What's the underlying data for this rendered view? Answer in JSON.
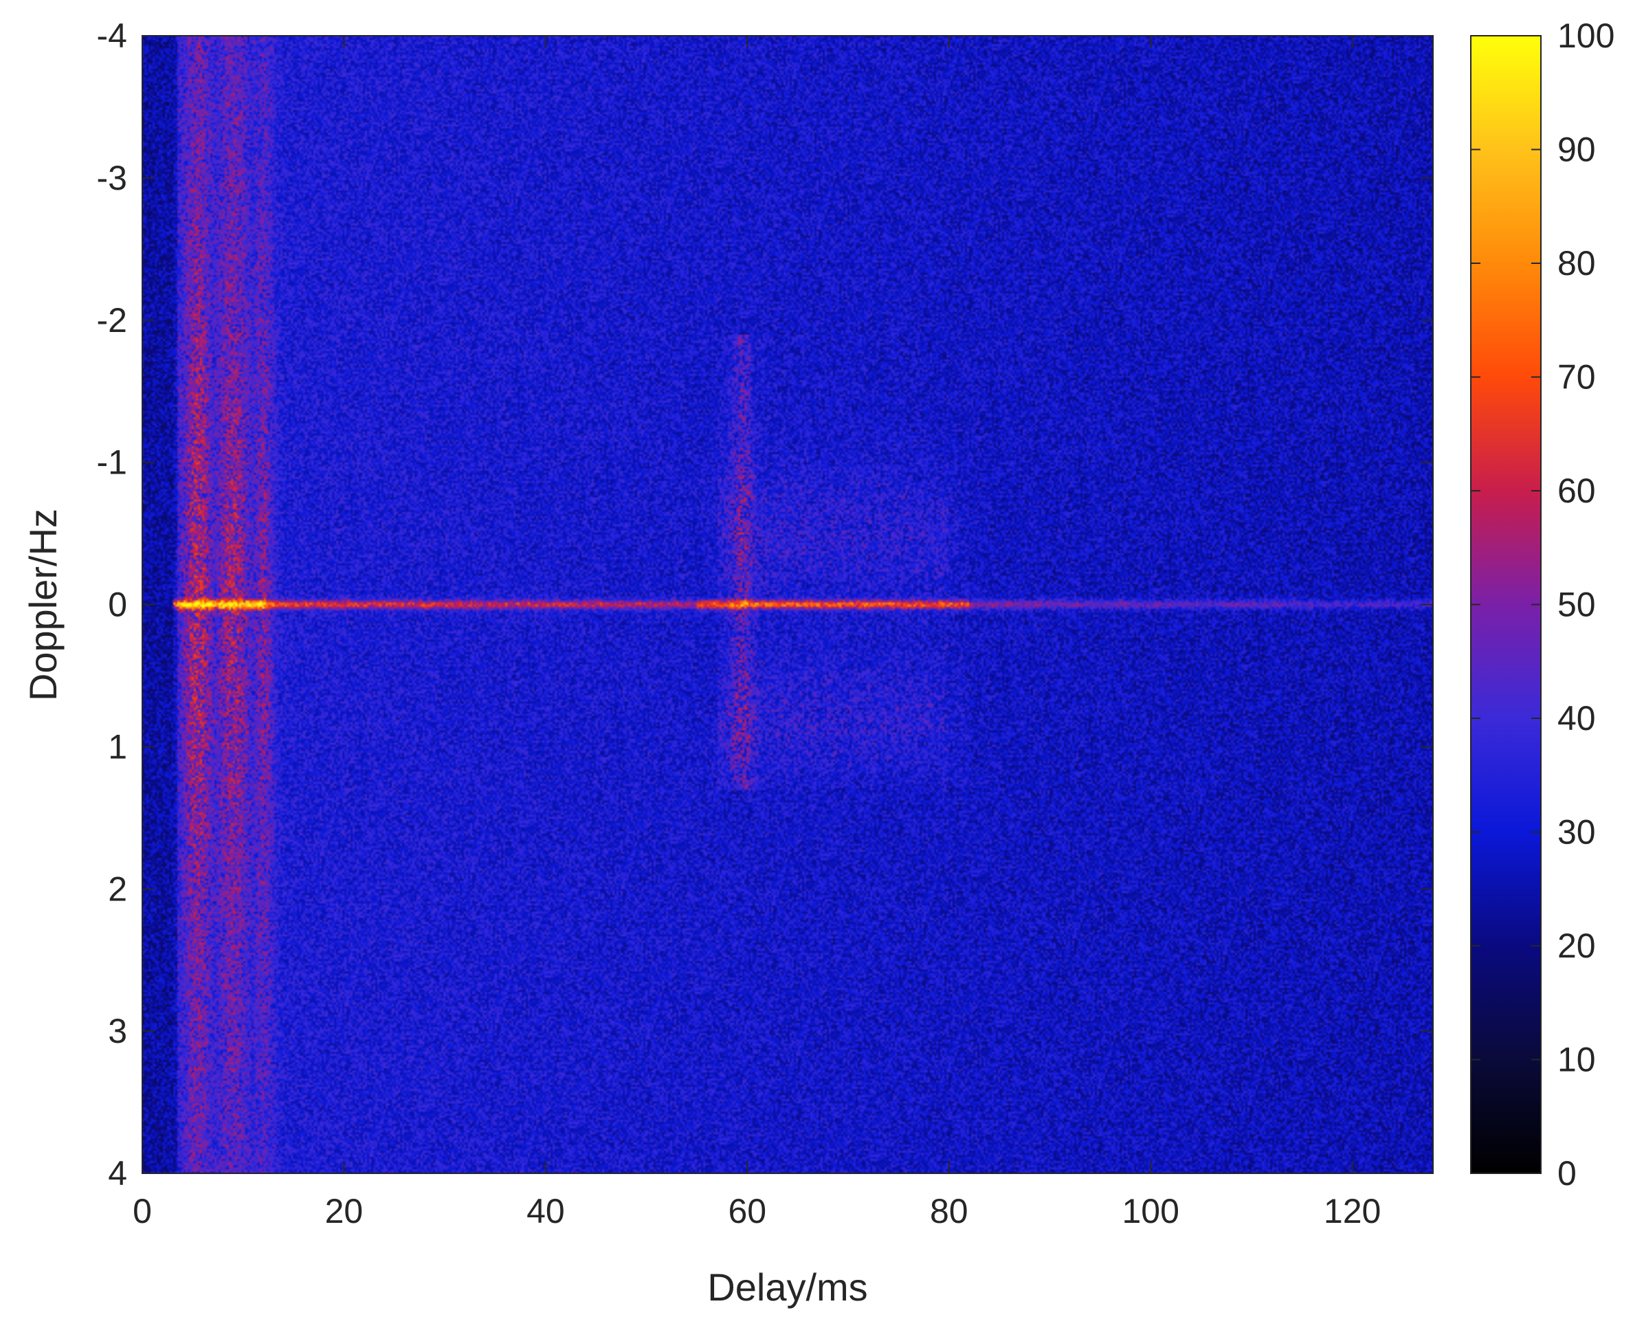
{
  "chart_data": {
    "type": "heatmap",
    "title": "",
    "xlabel": "Delay/ms",
    "ylabel": "Doppler/Hz",
    "xlim": [
      0,
      128
    ],
    "ylim": [
      -4,
      4
    ],
    "y_reversed": true,
    "x_ticks": [
      0,
      20,
      40,
      60,
      80,
      100,
      120
    ],
    "x_tick_labels": [
      "0",
      "20",
      "40",
      "60",
      "80",
      "100",
      "120"
    ],
    "y_ticks": [
      -4,
      -3,
      -2,
      -1,
      0,
      1,
      2,
      3,
      4
    ],
    "y_tick_labels": [
      "-4",
      "-3",
      "-2",
      "-1",
      "0",
      "1",
      "2",
      "3",
      "4"
    ],
    "colorbar": {
      "range": [
        0,
        100
      ],
      "ticks": [
        0,
        10,
        20,
        30,
        40,
        50,
        60,
        70,
        80,
        90,
        100
      ],
      "tick_labels": [
        "0",
        "10",
        "20",
        "30",
        "40",
        "50",
        "60",
        "70",
        "80",
        "90",
        "100"
      ],
      "colormap": "gnuplot-like",
      "colors": [
        "#000000",
        "#0a0a3a",
        "#0a0a80",
        "#0b18d8",
        "#3b2ad8",
        "#7a20a8",
        "#c81e4c",
        "#ff4a0a",
        "#ff8a0a",
        "#ffc21a",
        "#ffff0a"
      ]
    },
    "grid": false,
    "features": [
      {
        "description": "horizontal zero-Doppler ridge",
        "doppler": 0,
        "delay_range": [
          3,
          128
        ],
        "peak_value": 95
      },
      {
        "description": "strong multipath cluster",
        "delay_range": [
          3,
          13
        ],
        "doppler_range": [
          -4,
          4
        ],
        "level": 65
      },
      {
        "description": "second multipath cluster",
        "delay_range": [
          58,
          80
        ],
        "doppler_range": [
          -1.8,
          1.2
        ],
        "level": 55
      },
      {
        "description": "background noise",
        "level": 35
      }
    ]
  }
}
